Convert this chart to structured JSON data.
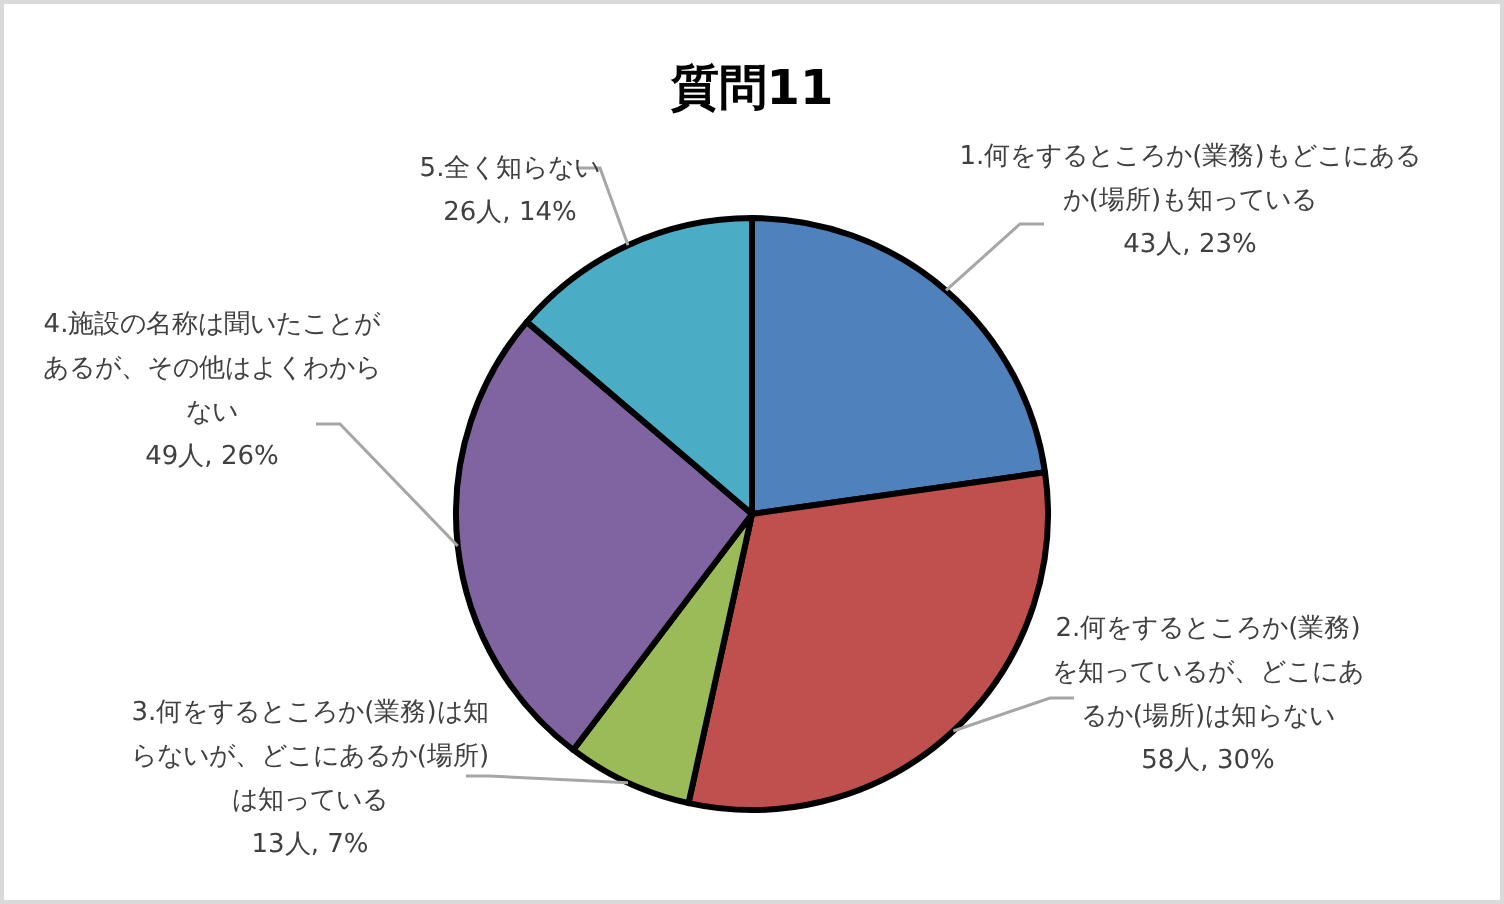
{
  "chart_data": {
    "type": "pie",
    "title": "質問11",
    "categories": [
      "1.何をするところか(業務)もどこにあるか(場所)も知っている",
      "2.何をするところか(業務)を知っているが、どこにあるか(場所)は知らない",
      "3.何をするところか(業務)は知らないが、どこにあるか(場所)は知っている",
      "4.施設の名称は聞いたことがあるが、その他はよくわからない",
      "5.全く知らない"
    ],
    "values": [
      43,
      58,
      13,
      49,
      26
    ],
    "colors": [
      "#4f81bd",
      "#c0504d",
      "#9bbb59",
      "#8064a2",
      "#4bacc6"
    ],
    "value_labels": [
      "43人, 23%",
      "58人, 30%",
      "13人, 7%",
      "49人, 26%",
      "26人, 14%"
    ]
  }
}
